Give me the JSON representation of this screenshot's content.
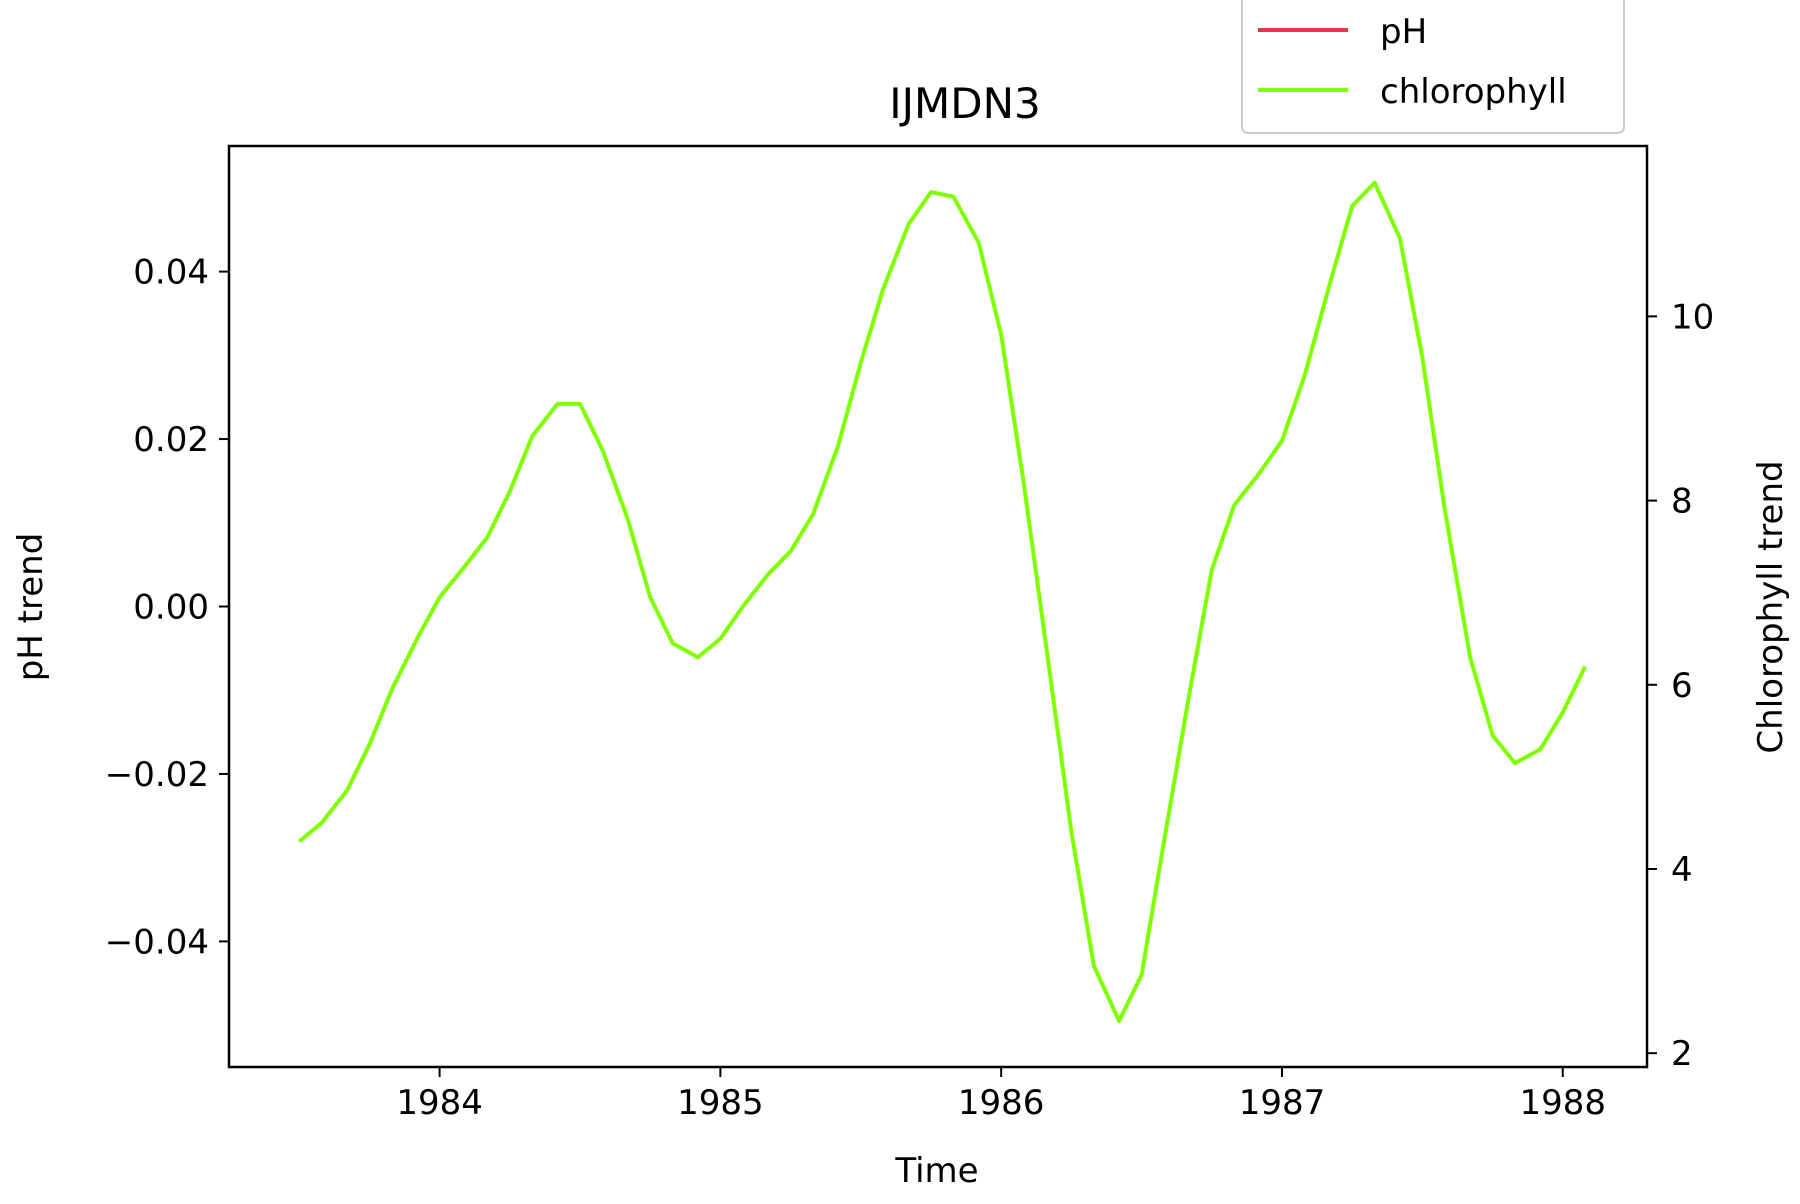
{
  "chart_data": {
    "type": "line",
    "title": "IJMDN3",
    "xlabel": "Time",
    "ylabel": "pH trend",
    "y2label": "Chlorophyll trend",
    "xlim": [
      1983.25,
      1988.3
    ],
    "ylim": [
      -0.055,
      0.055
    ],
    "y2lim": [
      1.85,
      11.85
    ],
    "x_ticks": [
      {
        "value": 1984,
        "label": "1984"
      },
      {
        "value": 1985,
        "label": "1985"
      },
      {
        "value": 1986,
        "label": "1986"
      },
      {
        "value": 1987,
        "label": "1987"
      },
      {
        "value": 1988,
        "label": "1988"
      }
    ],
    "y_ticks": [
      {
        "value": 0.04,
        "label": "0.04"
      },
      {
        "value": 0.02,
        "label": "0.02"
      },
      {
        "value": 0.0,
        "label": "0.00"
      },
      {
        "value": -0.02,
        "label": "−0.02"
      },
      {
        "value": -0.04,
        "label": "−0.04"
      }
    ],
    "y2_ticks": [
      {
        "value": 10,
        "label": "10"
      },
      {
        "value": 8,
        "label": "8"
      },
      {
        "value": 6,
        "label": "6"
      },
      {
        "value": 4,
        "label": "4"
      },
      {
        "value": 2,
        "label": "2"
      }
    ],
    "legend": {
      "placement": "top-right",
      "entries": [
        {
          "label": "pH",
          "color": "#e8334a"
        },
        {
          "label": "chlorophyll",
          "color": "#7fff00"
        }
      ]
    },
    "series": [
      {
        "name": "pH",
        "axis": "left",
        "color": "#e8334a",
        "x": [],
        "y": []
      },
      {
        "name": "chlorophyll",
        "axis": "right",
        "color": "#7fff00",
        "x": [
          1983.5,
          1983.58,
          1983.67,
          1983.75,
          1983.83,
          1983.92,
          1984.0,
          1984.08,
          1984.17,
          1984.25,
          1984.33,
          1984.42,
          1984.5,
          1984.58,
          1984.67,
          1984.75,
          1984.83,
          1984.92,
          1985.0,
          1985.08,
          1985.17,
          1985.25,
          1985.33,
          1985.42,
          1985.5,
          1985.58,
          1985.67,
          1985.75,
          1985.83,
          1985.92,
          1986.0,
          1986.08,
          1986.17,
          1986.25,
          1986.33,
          1986.42,
          1986.5,
          1986.58,
          1986.67,
          1986.75,
          1986.83,
          1986.92,
          1987.0,
          1987.08,
          1987.17,
          1987.25,
          1987.33,
          1987.42,
          1987.5,
          1987.58,
          1987.67,
          1987.75,
          1987.83,
          1987.92,
          1988.0,
          1988.08
        ],
        "y": [
          4.3,
          4.5,
          4.85,
          5.35,
          5.95,
          6.5,
          6.95,
          7.25,
          7.6,
          8.1,
          8.7,
          9.05,
          9.05,
          8.55,
          7.8,
          6.95,
          6.45,
          6.3,
          6.5,
          6.85,
          7.2,
          7.45,
          7.85,
          8.6,
          9.5,
          10.3,
          11.0,
          11.35,
          11.3,
          10.8,
          9.8,
          8.2,
          6.2,
          4.4,
          2.95,
          2.35,
          2.85,
          4.3,
          5.9,
          7.25,
          7.95,
          8.3,
          8.65,
          9.35,
          10.35,
          11.2,
          11.45,
          10.85,
          9.55,
          7.9,
          6.3,
          5.45,
          5.15,
          5.3,
          5.7,
          6.2
        ]
      }
    ]
  }
}
